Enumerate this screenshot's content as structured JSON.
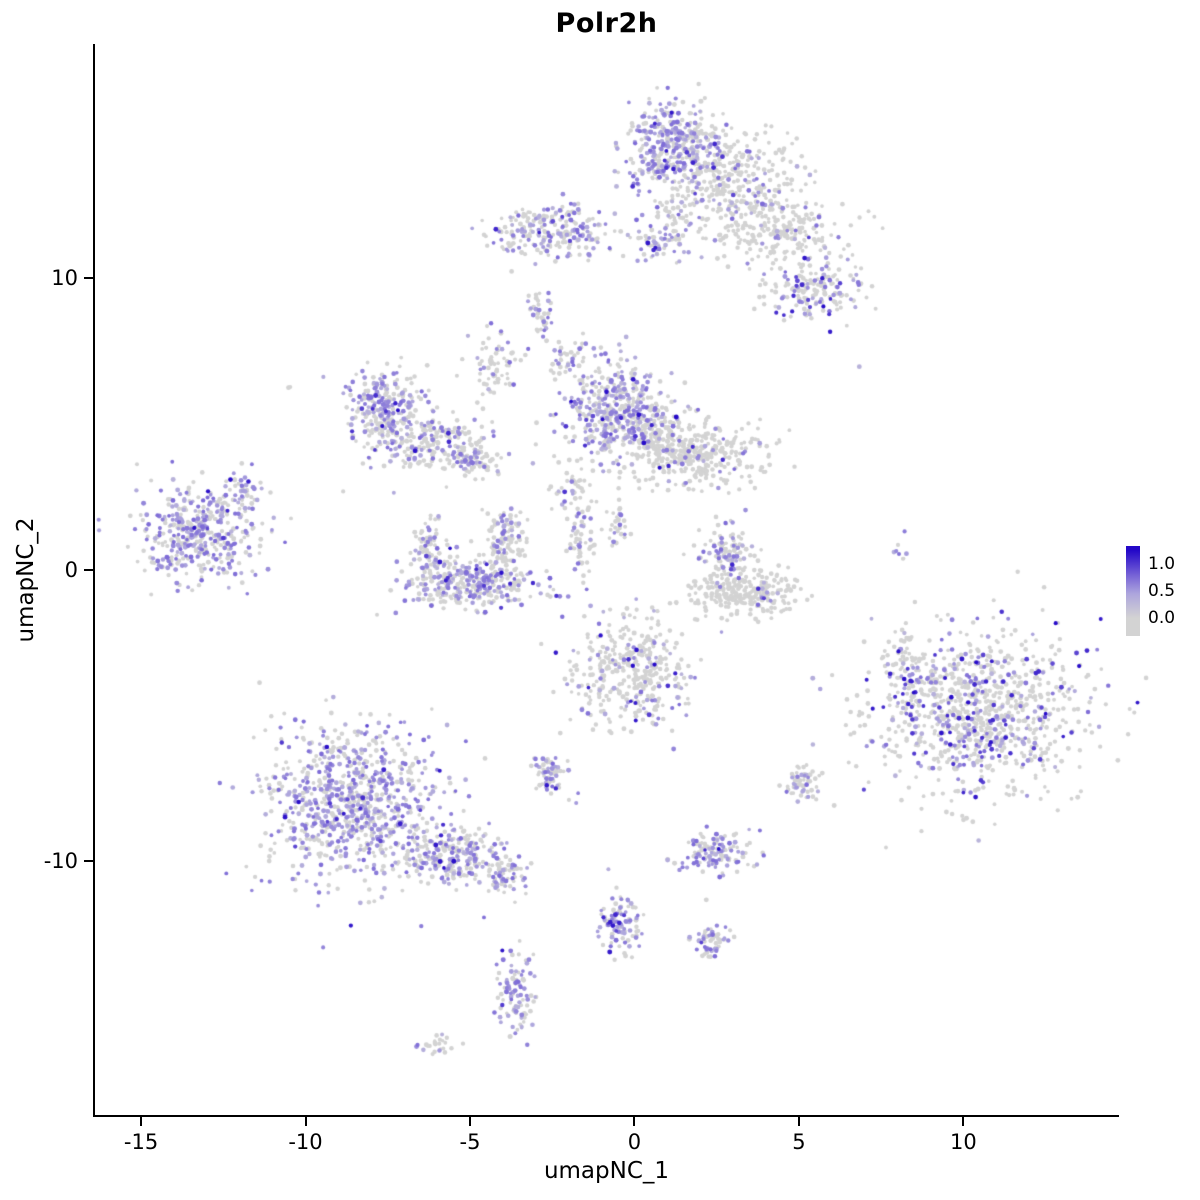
{
  "chart_data": {
    "type": "scatter",
    "title": "Polr2h",
    "xlabel": "umapNC_1",
    "ylabel": "umapNC_2",
    "xlim": [
      -16.4,
      14.7
    ],
    "ylim": [
      -18.7,
      18.0
    ],
    "x_ticks": [
      -15,
      -10,
      -5,
      0,
      5,
      10
    ],
    "y_ticks": [
      -10,
      0,
      10
    ],
    "grid": false,
    "legend": {
      "position": "right",
      "vmin": 0.0,
      "vmax": 1.25,
      "ticks": [
        {
          "value": 1.0,
          "label": "1.0"
        },
        {
          "value": 0.5,
          "label": "0.5"
        },
        {
          "value": 0.0,
          "label": "0.0"
        }
      ]
    },
    "colors": {
      "low": "#d3d3d3",
      "high": "#2408c8",
      "stops": [
        [
          0.0,
          "#d3d3d3"
        ],
        [
          0.45,
          "#ada5dd"
        ],
        [
          0.8,
          "#7561d6"
        ],
        [
          1.25,
          "#2408c8"
        ]
      ]
    },
    "point_radius_px": 2.2,
    "seed": 42,
    "clusters": [
      {
        "name": "top-cluster-dense",
        "cx": 1.1,
        "cy": 14.5,
        "sx": 0.75,
        "sy": 0.75,
        "n": 380,
        "frac": 0.55,
        "hi": 0.08
      },
      {
        "name": "top-cluster-right",
        "cx": 3.0,
        "cy": 13.4,
        "sx": 1.0,
        "sy": 0.85,
        "n": 320,
        "frac": 0.15,
        "hi": 0.08
      },
      {
        "name": "top-arm",
        "cx": 4.5,
        "cy": 11.6,
        "sx": 1.1,
        "sy": 0.55,
        "n": 220,
        "frac": 0.1,
        "hi": 0.1
      },
      {
        "name": "top-neck",
        "cx": 1.3,
        "cy": 11.8,
        "sx": 0.3,
        "sy": 0.7,
        "n": 55,
        "frac": 0.25,
        "hi": 0.05
      },
      {
        "name": "upper-band",
        "cx": -2.5,
        "cy": 11.6,
        "sx": 0.95,
        "sy": 0.45,
        "n": 240,
        "frac": 0.4,
        "hi": 0.06
      },
      {
        "name": "upper-band-right-dots",
        "cx": 0.6,
        "cy": 11.2,
        "sx": 0.4,
        "sy": 0.3,
        "n": 45,
        "frac": 0.5,
        "hi": 0.08
      },
      {
        "name": "right-knob",
        "cx": 5.4,
        "cy": 9.6,
        "sx": 0.75,
        "sy": 0.55,
        "n": 170,
        "frac": 0.35,
        "hi": 0.22
      },
      {
        "name": "strand-a",
        "cx": -2.8,
        "cy": 8.6,
        "sx": 0.18,
        "sy": 0.5,
        "n": 40,
        "frac": 0.35,
        "hi": 0.1
      },
      {
        "name": "strand-b",
        "cx": -2.1,
        "cy": 7.3,
        "sx": 0.25,
        "sy": 0.35,
        "n": 35,
        "frac": 0.3,
        "hi": 0.05
      },
      {
        "name": "strand-c",
        "cx": -4.3,
        "cy": 6.9,
        "sx": 0.35,
        "sy": 0.6,
        "n": 70,
        "frac": 0.3,
        "hi": 0.05
      },
      {
        "name": "left-crescent",
        "cx": -7.6,
        "cy": 5.6,
        "sx": 0.55,
        "sy": 0.65,
        "n": 250,
        "frac": 0.5,
        "hi": 0.07
      },
      {
        "name": "left-crescent-arm",
        "cx": -6.3,
        "cy": 4.3,
        "sx": 0.85,
        "sy": 0.5,
        "n": 220,
        "frac": 0.35,
        "hi": 0.07
      },
      {
        "name": "left-crescent-tip",
        "cx": -4.9,
        "cy": 3.9,
        "sx": 0.4,
        "sy": 0.35,
        "n": 80,
        "frac": 0.3,
        "hi": 0.05
      },
      {
        "name": "mid-upper",
        "cx": -0.6,
        "cy": 5.5,
        "sx": 0.8,
        "sy": 0.85,
        "n": 420,
        "frac": 0.5,
        "hi": 0.07
      },
      {
        "name": "mid-right",
        "cx": 1.8,
        "cy": 4.0,
        "sx": 1.05,
        "sy": 0.6,
        "n": 380,
        "frac": 0.12,
        "hi": 0.08
      },
      {
        "name": "mid-bridge",
        "cx": 0.4,
        "cy": 4.8,
        "sx": 0.5,
        "sy": 0.5,
        "n": 90,
        "frac": 0.2,
        "hi": 0.05
      },
      {
        "name": "far-left",
        "cx": -13.2,
        "cy": 1.2,
        "sx": 0.9,
        "sy": 0.8,
        "n": 430,
        "frac": 0.5,
        "hi": 0.04
      },
      {
        "name": "far-left-tip",
        "cx": -11.9,
        "cy": 2.7,
        "sx": 0.25,
        "sy": 0.4,
        "n": 40,
        "frac": 0.3,
        "hi": 0.03
      },
      {
        "name": "center-crescent",
        "cx": -5.0,
        "cy": -0.5,
        "sx": 1.05,
        "sy": 0.4,
        "n": 320,
        "frac": 0.45,
        "hi": 0.06
      },
      {
        "name": "center-crescent-left",
        "cx": -6.2,
        "cy": 0.7,
        "sx": 0.3,
        "sy": 0.55,
        "n": 90,
        "frac": 0.3,
        "hi": 0.04
      },
      {
        "name": "center-crescent-right",
        "cx": -3.9,
        "cy": 0.9,
        "sx": 0.35,
        "sy": 0.6,
        "n": 110,
        "frac": 0.25,
        "hi": 0.04
      },
      {
        "name": "center-strand",
        "cx": -1.6,
        "cy": 0.8,
        "sx": 0.2,
        "sy": 0.6,
        "n": 50,
        "frac": 0.3,
        "hi": 0.05
      },
      {
        "name": "neck-dots",
        "cx": -1.8,
        "cy": 2.8,
        "sx": 0.35,
        "sy": 0.6,
        "n": 50,
        "frac": 0.25,
        "hi": 0.05
      },
      {
        "name": "neck-center",
        "cx": -0.5,
        "cy": 1.5,
        "sx": 0.2,
        "sy": 0.5,
        "n": 30,
        "frac": 0.3,
        "hi": 0.05
      },
      {
        "name": "right-crescent-top",
        "cx": 2.8,
        "cy": 0.6,
        "sx": 0.45,
        "sy": 0.5,
        "n": 120,
        "frac": 0.3,
        "hi": 0.08
      },
      {
        "name": "right-crescent-bowl",
        "cx": 3.3,
        "cy": -0.8,
        "sx": 0.85,
        "sy": 0.35,
        "n": 260,
        "frac": 0.04,
        "hi": 0.05
      },
      {
        "name": "center-bottom",
        "cx": -0.1,
        "cy": -3.6,
        "sx": 0.95,
        "sy": 0.9,
        "n": 380,
        "frac": 0.2,
        "hi": 0.15
      },
      {
        "name": "right-big",
        "cx": 10.4,
        "cy": -4.9,
        "sx": 1.6,
        "sy": 1.4,
        "n": 950,
        "frac": 0.25,
        "hi": 0.35
      },
      {
        "name": "right-big-edge",
        "cx": 8.3,
        "cy": -3.2,
        "sx": 0.4,
        "sy": 0.6,
        "n": 70,
        "frac": 0.3,
        "hi": 0.3
      },
      {
        "name": "bottom-left-big",
        "cx": -8.5,
        "cy": -8.0,
        "sx": 1.35,
        "sy": 1.3,
        "n": 850,
        "frac": 0.55,
        "hi": 0.05
      },
      {
        "name": "bottom-left-tail",
        "cx": -5.6,
        "cy": -9.8,
        "sx": 0.85,
        "sy": 0.5,
        "n": 250,
        "frac": 0.4,
        "hi": 0.05
      },
      {
        "name": "bottom-left-tip",
        "cx": -3.9,
        "cy": -10.5,
        "sx": 0.35,
        "sy": 0.3,
        "n": 70,
        "frac": 0.45,
        "hi": 0.05
      },
      {
        "name": "small-low-a",
        "cx": -2.6,
        "cy": -7.1,
        "sx": 0.3,
        "sy": 0.35,
        "n": 70,
        "frac": 0.4,
        "hi": 0.15
      },
      {
        "name": "small-low-b",
        "cx": 5.1,
        "cy": -7.3,
        "sx": 0.3,
        "sy": 0.3,
        "n": 60,
        "frac": 0.3,
        "hi": 0.1
      },
      {
        "name": "small-low-c",
        "cx": 2.4,
        "cy": -9.7,
        "sx": 0.55,
        "sy": 0.35,
        "n": 130,
        "frac": 0.5,
        "hi": 0.08
      },
      {
        "name": "bottom-strand-mid",
        "cx": -0.4,
        "cy": -12.1,
        "sx": 0.3,
        "sy": 0.65,
        "n": 100,
        "frac": 0.5,
        "hi": 0.08
      },
      {
        "name": "small-bottom-right",
        "cx": 2.3,
        "cy": -12.7,
        "sx": 0.3,
        "sy": 0.3,
        "n": 55,
        "frac": 0.45,
        "hi": 0.08
      },
      {
        "name": "bottom-strand",
        "cx": -3.6,
        "cy": -14.5,
        "sx": 0.28,
        "sy": 0.8,
        "n": 100,
        "frac": 0.5,
        "hi": 0.08
      },
      {
        "name": "bottom-tiny",
        "cx": -6.0,
        "cy": -16.3,
        "sx": 0.3,
        "sy": 0.18,
        "n": 25,
        "frac": 0.15,
        "hi": 0
      },
      {
        "name": "isolated-left",
        "cx": -10.5,
        "cy": 6.2,
        "sx": 0.05,
        "sy": 0.05,
        "n": 2,
        "frac": 0,
        "hi": 0
      },
      {
        "name": "isolated-right",
        "cx": 6.9,
        "cy": 7.0,
        "sx": 0.05,
        "sy": 0.05,
        "n": 1,
        "frac": 1,
        "hi": 0
      },
      {
        "name": "dots-right-mid",
        "cx": 8.1,
        "cy": 0.6,
        "sx": 0.12,
        "sy": 0.35,
        "n": 8,
        "frac": 0.4,
        "hi": 0.2
      }
    ]
  }
}
